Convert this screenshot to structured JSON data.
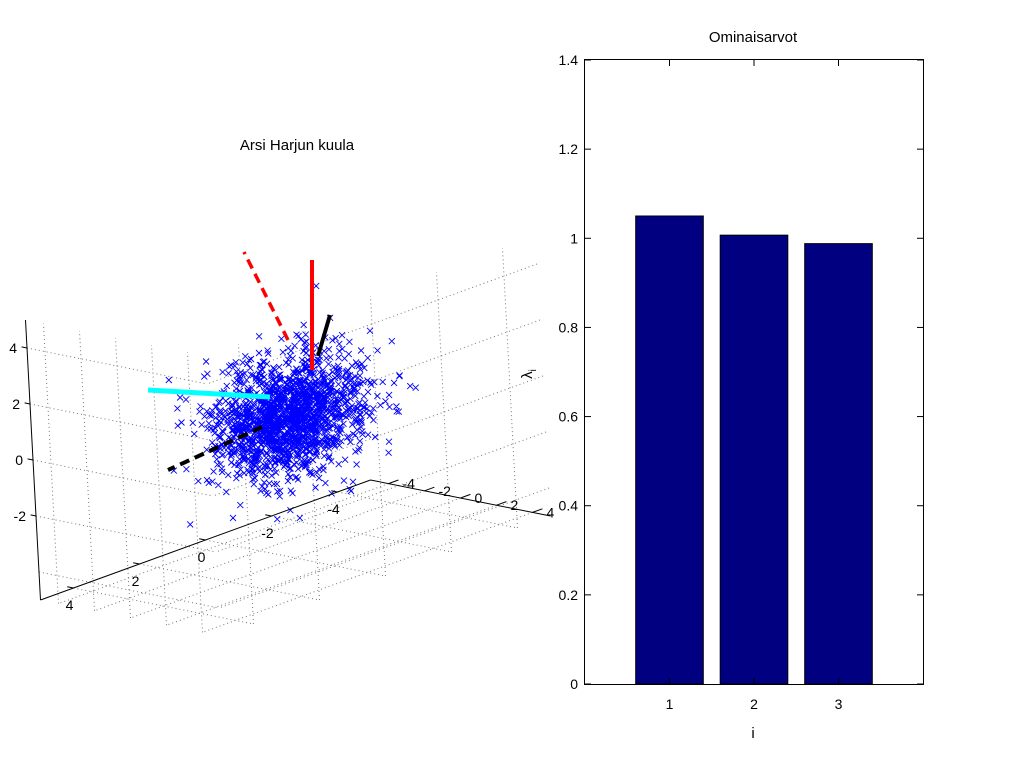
{
  "chart_data": [
    {
      "type": "scatter",
      "projection": "3d",
      "title": "Arsi Harjun kuula",
      "marker": "x",
      "marker_color": "#0000ff",
      "grid": true,
      "axes": {
        "x": {
          "ticks": [
            "4",
            "2",
            "0",
            "-2",
            "-4"
          ]
        },
        "y": {
          "ticks": [
            "-4",
            "-2",
            "0",
            "2",
            "4"
          ]
        },
        "z": {
          "ticks": [
            "-2",
            "0",
            "2",
            "4"
          ]
        }
      },
      "vectors": [
        {
          "color": "#ff0000",
          "style": "solid"
        },
        {
          "color": "#ff0000",
          "style": "dashed"
        },
        {
          "color": "#00ffff",
          "style": "solid"
        },
        {
          "color": "#000000",
          "style": "solid"
        },
        {
          "color": "#000000",
          "style": "dashed"
        }
      ]
    },
    {
      "type": "bar",
      "title": "Ominaisarvot",
      "xlabel": "i",
      "ylabel_main": "λ",
      "ylabel_sub": "i",
      "categories": [
        "1",
        "2",
        "3"
      ],
      "values": [
        1.05,
        1.007,
        0.988
      ],
      "ylim": [
        0,
        1.4
      ],
      "yticks": [
        0,
        0.2,
        0.4,
        0.6,
        0.8,
        1,
        1.2,
        1.4
      ],
      "ytick_labels": [
        "0",
        "0.2",
        "0.4",
        "0.6",
        "0.8",
        "1",
        "1.2",
        "1.4"
      ],
      "bar_color": "#000080"
    }
  ]
}
